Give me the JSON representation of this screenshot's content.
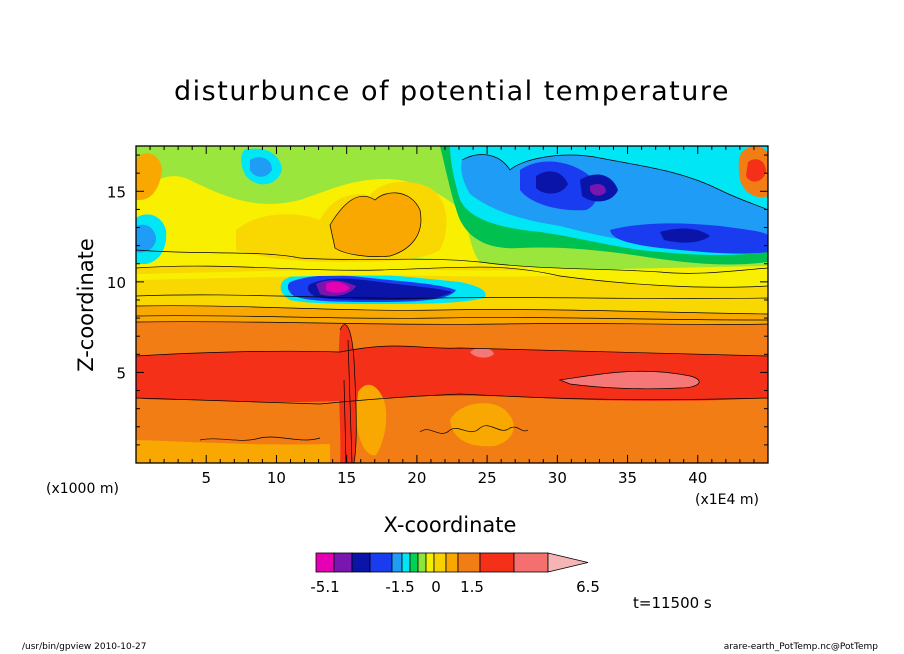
{
  "chart_data": {
    "type": "heatmap",
    "title": "disturbunce of potential temperature",
    "xlabel": "X-coordinate",
    "ylabel": "Z-coordinate",
    "x_unit": "(x1000 m)",
    "x_scale_note": "(x1E4 m)",
    "xlim": [
      0,
      45
    ],
    "ylim": [
      0,
      17.5
    ],
    "x_ticks": [
      5,
      10,
      15,
      20,
      25,
      30,
      35,
      40
    ],
    "y_ticks": [
      5,
      10,
      15
    ],
    "colorbar": {
      "labels": [
        "-5.1",
        "-1.5",
        "0",
        "1.5",
        "6.5"
      ],
      "colors": [
        "#e600b3",
        "#7a16b0",
        "#0a14a8",
        "#1a3cf0",
        "#1f9cf5",
        "#00e6f5",
        "#00d258",
        "#8ae63c",
        "#f0f000",
        "#f8d200",
        "#f8a600",
        "#f27d14",
        "#f43018",
        "#f66f6f",
        "#f6b4b4"
      ]
    },
    "time_label": "t=11500 s"
  },
  "footer": {
    "left": "/usr/bin/gpview   2010-10-27",
    "right": "arare-earth_PotTemp.nc@PotTemp"
  }
}
